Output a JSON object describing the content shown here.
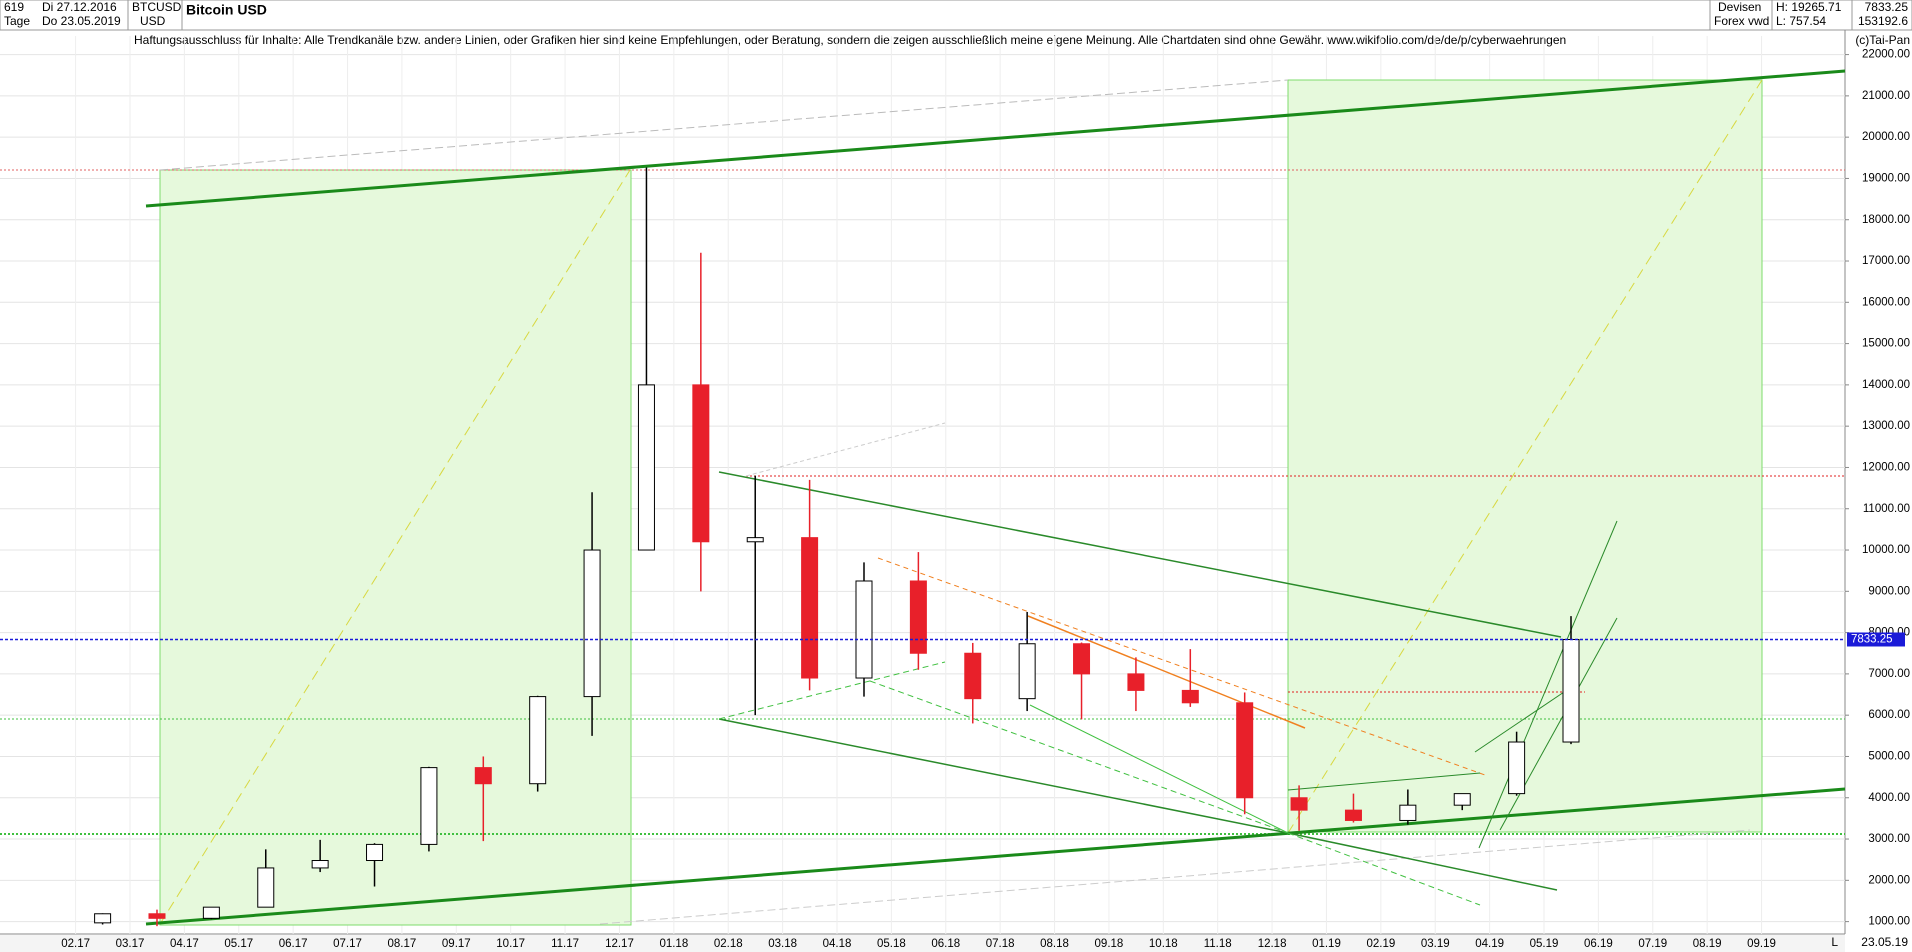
{
  "header": {
    "count": "619",
    "range_unit": "Tage",
    "start": "Di 27.12.2016",
    "end": "Do 23.05.2019",
    "symbol": "BTCUSD",
    "currency": "USD",
    "exchange": "Devisen",
    "source": "Forex vwd",
    "high": "H: 19265.71",
    "low": "L: 757.54",
    "last": "7833.25",
    "volume": "153192.6",
    "copyright": "(c)Tai-Pan",
    "date": "23.05.19",
    "scale_mode": "L"
  },
  "chart_data": {
    "type": "candlestick",
    "title": "Bitcoin USD",
    "subtitle": "Haftungsausschluss für Inhalte: Alle Trendkanäle bzw. andere Linien, oder Grafiken hier sind keine Empfehlungen, oder Beratung, sondern die zeigen ausschließlich meine eigene Meinung. Alle Chartdaten sind ohne Gewähr.  www.wikifolio.com/de/de/p/cyberwaehrungen",
    "categories": [
      "02.17",
      "03.17",
      "04.17",
      "05.17",
      "06.17",
      "07.17",
      "08.17",
      "09.17",
      "10.17",
      "11.17",
      "12.17",
      "01.18",
      "02.18",
      "03.18",
      "04.18",
      "05.18",
      "06.18",
      "07.18",
      "08.18",
      "09.18",
      "10.18",
      "11.18",
      "12.18",
      "01.19",
      "02.19",
      "03.19",
      "04.19",
      "05.19",
      "06.19",
      "07.19",
      "08.19",
      "09.19"
    ],
    "open": [
      970,
      1190,
      1080,
      1350,
      2300,
      2480,
      2870,
      4730,
      4340,
      6450,
      10000,
      14000,
      10200,
      10300,
      6900,
      9250,
      7500,
      6400,
      7730,
      7000,
      6600,
      6300,
      4000,
      3700,
      3450,
      3820,
      4100,
      5350,
      null,
      null,
      null,
      null
    ],
    "high": [
      1200,
      1290,
      1350,
      2750,
      2980,
      2900,
      4750,
      5000,
      6470,
      11400,
      19266,
      17200,
      11800,
      11700,
      9700,
      9950,
      7750,
      8500,
      7760,
      7400,
      7600,
      6550,
      4300,
      4100,
      4200,
      4100,
      5600,
      8400,
      null,
      null,
      null,
      null
    ],
    "low": [
      930,
      890,
      1060,
      1350,
      2200,
      1850,
      2700,
      2950,
      4150,
      5500,
      10000,
      9000,
      6000,
      6600,
      6450,
      7100,
      5800,
      6100,
      5900,
      6100,
      6200,
      3600,
      3200,
      3400,
      3350,
      3700,
      4050,
      5300,
      null,
      null,
      null,
      null
    ],
    "close": [
      1190,
      1080,
      1350,
      2300,
      2480,
      2870,
      4730,
      4340,
      6450,
      10000,
      14000,
      10200,
      10300,
      6900,
      9250,
      7500,
      6400,
      7730,
      7000,
      6600,
      6300,
      4000,
      3700,
      3450,
      3820,
      4100,
      5350,
      7833,
      null,
      null,
      null,
      null
    ],
    "up_color": "#000000",
    "down_color": "#e8202a",
    "last_price": 7833.25,
    "last_price_color": "#1a1ad8",
    "ylim": [
      700,
      22450
    ],
    "yticks": [
      {
        "value": 1000,
        "label": "1000.00"
      },
      {
        "value": 2000,
        "label": "2000.00"
      },
      {
        "value": 3000,
        "label": "3000.00"
      },
      {
        "value": 4000,
        "label": "4000.00"
      },
      {
        "value": 5000,
        "label": "5000.00"
      },
      {
        "value": 6000,
        "label": "6000.00"
      },
      {
        "value": 7000,
        "label": "7000.00"
      },
      {
        "value": 8000,
        "label": "8000.00"
      },
      {
        "value": 9000,
        "label": "9000.00"
      },
      {
        "value": 10000,
        "label": "10000.00"
      },
      {
        "value": 11000,
        "label": "11000.00"
      },
      {
        "value": 12000,
        "label": "12000.00"
      },
      {
        "value": 13000,
        "label": "13000.00"
      },
      {
        "value": 14000,
        "label": "14000.00"
      },
      {
        "value": 15000,
        "label": "15000.00"
      },
      {
        "value": 16000,
        "label": "16000.00"
      },
      {
        "value": 17000,
        "label": "17000.00"
      },
      {
        "value": 18000,
        "label": "18000.00"
      },
      {
        "value": 19000,
        "label": "19000.00"
      },
      {
        "value": 20000,
        "label": "20000.00"
      },
      {
        "value": 21000,
        "label": "21000.00"
      },
      {
        "value": 22000,
        "label": "22000.00"
      }
    ],
    "grid": true
  }
}
